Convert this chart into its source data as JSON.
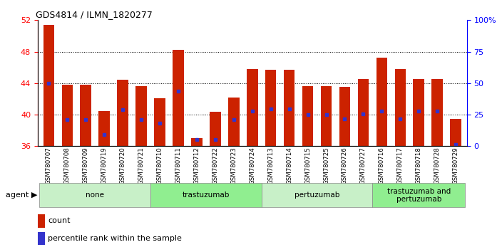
{
  "title": "GDS4814 / ILMN_1820277",
  "samples": [
    "GSM780707",
    "GSM780708",
    "GSM780709",
    "GSM780719",
    "GSM780720",
    "GSM780721",
    "GSM780710",
    "GSM780711",
    "GSM780712",
    "GSM780722",
    "GSM780723",
    "GSM780724",
    "GSM780713",
    "GSM780714",
    "GSM780715",
    "GSM780725",
    "GSM780726",
    "GSM780727",
    "GSM780716",
    "GSM780717",
    "GSM780718",
    "GSM780728",
    "GSM780729"
  ],
  "counts": [
    51.4,
    43.8,
    43.8,
    40.5,
    44.4,
    43.6,
    42.1,
    48.2,
    37.0,
    40.4,
    42.2,
    45.8,
    45.7,
    45.7,
    43.6,
    43.6,
    43.5,
    44.5,
    47.2,
    45.8,
    44.5,
    44.5,
    39.5
  ],
  "percentile_pos": [
    44.0,
    39.4,
    39.4,
    37.5,
    40.6,
    39.4,
    38.9,
    43.0,
    36.8,
    36.8,
    39.4,
    40.5,
    40.7,
    40.7,
    40.0,
    40.0,
    39.5,
    40.1,
    40.5,
    39.5,
    40.5,
    40.5,
    36.2
  ],
  "groups": [
    {
      "label": "none",
      "start": 0,
      "end": 6,
      "color": "#c8f0c8"
    },
    {
      "label": "trastuzumab",
      "start": 6,
      "end": 12,
      "color": "#90ee90"
    },
    {
      "label": "pertuzumab",
      "start": 12,
      "end": 18,
      "color": "#c8f0c8"
    },
    {
      "label": "trastuzumab and\npertuzumab",
      "start": 18,
      "end": 23,
      "color": "#90ee90"
    }
  ],
  "ylim_left": [
    36,
    52
  ],
  "yticks_left": [
    36,
    40,
    44,
    48,
    52
  ],
  "ylim_right": [
    0,
    100
  ],
  "yticks_right": [
    0,
    25,
    50,
    75,
    100
  ],
  "bar_color": "#cc2200",
  "dot_color": "#3333cc",
  "bar_width": 0.6,
  "agent_label": "agent",
  "legend_count": "count",
  "legend_pct": "percentile rank within the sample",
  "grid_vals": [
    40,
    44,
    48
  ]
}
